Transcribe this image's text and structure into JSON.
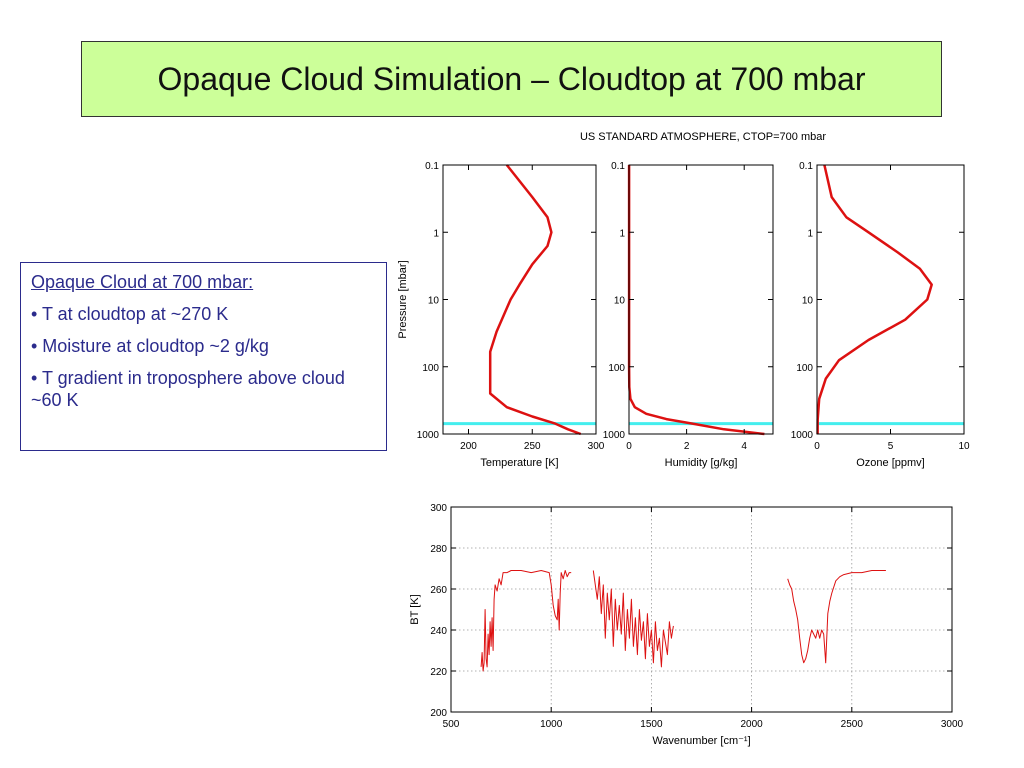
{
  "slide": {
    "title": "Opaque Cloud Simulation – Cloudtop at 700 mbar",
    "note_heading": "Opaque Cloud at 700 mbar:",
    "bullets": [
      "• T at cloudtop at ~270 K",
      "• Moisture at cloudtop ~2 g/kg",
      "• T gradient in troposphere above cloud ~60 K"
    ]
  },
  "colors": {
    "title_bg": "#ccff99",
    "note_text": "#2b2b8c",
    "curve": "#dd1111",
    "cloud_line": "#44eeee",
    "grid": "#999999"
  },
  "chart_data": [
    {
      "type": "line",
      "title": "US STANDARD ATMOSPHERE, CTOP=700 mbar",
      "xlabel": "Temperature [K]",
      "ylabel": "Pressure [mbar]",
      "xlim": [
        180,
        300
      ],
      "ylim": [
        0.1,
        1000
      ],
      "yscale": "log",
      "y_inverted": true,
      "xticks": [
        200,
        250,
        300
      ],
      "yticks": [
        0.1,
        1,
        10,
        100,
        1000
      ],
      "ytick_labels": [
        "0.1",
        "1",
        "10",
        "100",
        "1000"
      ],
      "cloud_top_pressure": 700,
      "series": [
        {
          "x": [
            230,
            250,
            262,
            265,
            262,
            250,
            240,
            233,
            222,
            217,
            217,
            217,
            230,
            250,
            268,
            278,
            288
          ],
          "y": [
            0.1,
            0.3,
            0.6,
            1.0,
            1.6,
            3,
            6,
            10,
            30,
            60,
            100,
            250,
            400,
            550,
            700,
            850,
            1000
          ]
        }
      ]
    },
    {
      "type": "line",
      "xlabel": "Humidity [g/kg]",
      "ylabel": "",
      "xlim": [
        0,
        5
      ],
      "ylim": [
        0.1,
        1000
      ],
      "yscale": "log",
      "y_inverted": true,
      "xticks": [
        0,
        2,
        4
      ],
      "yticks": [
        0.1,
        1,
        10,
        100,
        1000
      ],
      "ytick_labels": [
        "0.1",
        "1",
        "10",
        "100",
        "1000"
      ],
      "cloud_top_pressure": 700,
      "series": [
        {
          "x": [
            0.003,
            0.003,
            0.003,
            0.005,
            0.01,
            0.05,
            0.2,
            0.6,
            1.3,
            2.2,
            3.3,
            4.7
          ],
          "y": [
            0.1,
            1,
            10,
            100,
            200,
            300,
            400,
            500,
            600,
            700,
            850,
            1000
          ]
        }
      ]
    },
    {
      "type": "line",
      "xlabel": "Ozone [ppmv]",
      "ylabel": "",
      "xlim": [
        0,
        10
      ],
      "ylim": [
        0.1,
        1000
      ],
      "yscale": "log",
      "y_inverted": true,
      "xticks": [
        0,
        5,
        10
      ],
      "yticks": [
        0.1,
        1,
        10,
        100,
        1000
      ],
      "ytick_labels": [
        "0.1",
        "1",
        "10",
        "100",
        "1000"
      ],
      "cloud_top_pressure": 700,
      "series": [
        {
          "x": [
            0.5,
            1.0,
            2.0,
            3.5,
            5.5,
            7.0,
            7.8,
            7.5,
            6.0,
            3.5,
            1.5,
            0.6,
            0.15,
            0.05,
            0.04
          ],
          "y": [
            0.1,
            0.3,
            0.6,
            1.0,
            2.0,
            3.5,
            6,
            10,
            20,
            40,
            80,
            150,
            300,
            600,
            1000
          ]
        }
      ]
    },
    {
      "type": "line",
      "xlabel": "Wavenumber [cm⁻¹]",
      "ylabel": "BT [K]",
      "xlim": [
        500,
        3000
      ],
      "ylim": [
        200,
        300
      ],
      "xticks": [
        500,
        1000,
        1500,
        2000,
        2500,
        3000
      ],
      "yticks": [
        200,
        220,
        240,
        260,
        280,
        300
      ],
      "grid": true,
      "series": [
        {
          "x": [
            650,
            655,
            660,
            665,
            670,
            675,
            680,
            685,
            690,
            695,
            700,
            705,
            710,
            715,
            720,
            730,
            740,
            750,
            760,
            780,
            800,
            850,
            900,
            950,
            990,
            1000,
            1010,
            1020,
            1030,
            1035,
            1040,
            1045,
            1050,
            1060,
            1070,
            1080,
            1090,
            1100
          ],
          "y": [
            222,
            229,
            220,
            224,
            250,
            226,
            222,
            238,
            228,
            244,
            232,
            246,
            230,
            255,
            262,
            259,
            265,
            262,
            268,
            268,
            269,
            269,
            268,
            269,
            268,
            262,
            252,
            247,
            245,
            255,
            240,
            258,
            268,
            265,
            269,
            266,
            268,
            268
          ]
        },
        {
          "x": [
            1210,
            1220,
            1230,
            1240,
            1250,
            1260,
            1270,
            1280,
            1290,
            1300,
            1310,
            1320,
            1330,
            1340,
            1350,
            1360,
            1370,
            1380,
            1390,
            1400,
            1410,
            1420,
            1430,
            1440,
            1450,
            1460,
            1470,
            1480,
            1490,
            1500,
            1510,
            1520,
            1530,
            1540,
            1550,
            1560,
            1570,
            1580,
            1590,
            1600,
            1610
          ],
          "y": [
            269,
            262,
            255,
            266,
            248,
            262,
            236,
            258,
            245,
            260,
            232,
            255,
            240,
            252,
            238,
            258,
            230,
            250,
            236,
            255,
            232,
            246,
            228,
            250,
            235,
            244,
            226,
            248,
            232,
            240,
            224,
            244,
            230,
            236,
            222,
            240,
            234,
            228,
            244,
            236,
            242
          ]
        },
        {
          "x": [
            2180,
            2190,
            2200,
            2210,
            2220,
            2230,
            2240,
            2250,
            2260,
            2270,
            2280,
            2290,
            2300,
            2310,
            2320,
            2330,
            2340,
            2350,
            2360,
            2370,
            2380,
            2390,
            2400,
            2420,
            2440,
            2460,
            2500,
            2550,
            2600,
            2650,
            2670
          ],
          "y": [
            265,
            262,
            260,
            254,
            250,
            245,
            236,
            228,
            224,
            226,
            230,
            236,
            240,
            238,
            236,
            240,
            236,
            240,
            238,
            224,
            248,
            254,
            258,
            264,
            266,
            267,
            268,
            268,
            269,
            269,
            269
          ]
        }
      ]
    }
  ]
}
